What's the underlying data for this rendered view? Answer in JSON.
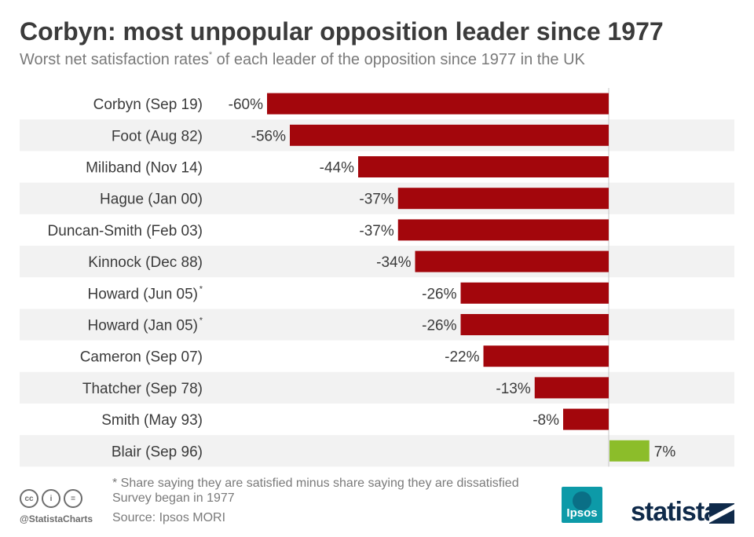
{
  "header": {
    "title": "Corbyn: most unpopular opposition leader since 1977",
    "subtitle_before": "Worst net satisfaction rates",
    "subtitle_sup": "*",
    "subtitle_after": " of each leader of the opposition since 1977 in the UK"
  },
  "chart_data": {
    "type": "bar",
    "orientation": "horizontal",
    "title": "Corbyn: most unpopular opposition leader since 1977",
    "subtitle": "Worst net satisfaction rates* of each leader of the opposition since 1977 in the UK",
    "unit": "%",
    "categories": [
      "Corbyn (Sep 19)",
      "Foot (Aug 82)",
      "Miliband (Nov 14)",
      "Hague (Jan 00)",
      "Duncan-Smith (Feb 03)",
      "Kinnock (Dec 88)",
      "Howard (Jun 05)",
      "Howard (Jan 05)",
      "Cameron (Sep 07)",
      "Thatcher (Sep 78)",
      "Smith (May 93)",
      "Blair (Sep 96)"
    ],
    "category_marks": [
      "",
      "",
      "",
      "",
      "",
      "",
      "*",
      "*",
      "",
      "",
      "",
      ""
    ],
    "values": [
      -60,
      -56,
      -44,
      -37,
      -37,
      -34,
      -26,
      -26,
      -22,
      -13,
      -8,
      7
    ],
    "data_labels": [
      "-60%",
      "-56%",
      "-44%",
      "-37%",
      "-37%",
      "-34%",
      "-26%",
      "-26%",
      "-22%",
      "-13%",
      "-8%",
      "7%"
    ],
    "xlim": [
      -60,
      7
    ],
    "colors": {
      "negative": "#a3060c",
      "positive": "#8cbd2a",
      "stripe": "#f2f2f2",
      "zero_line": "#c8c8c8"
    }
  },
  "footer": {
    "footnote_1": "* Share saying they are satisfied minus share saying they are dissatisfied",
    "footnote_2": "Survey began in 1977",
    "source": "Source: Ipsos MORI",
    "handle": "@StatistaCharts",
    "ipsos_logo": "Ipsos",
    "statista_logo": "statista",
    "cc_icons": [
      "cc",
      "by",
      "nd"
    ],
    "cc_icon_labels": [
      "cc",
      "i",
      "="
    ]
  }
}
